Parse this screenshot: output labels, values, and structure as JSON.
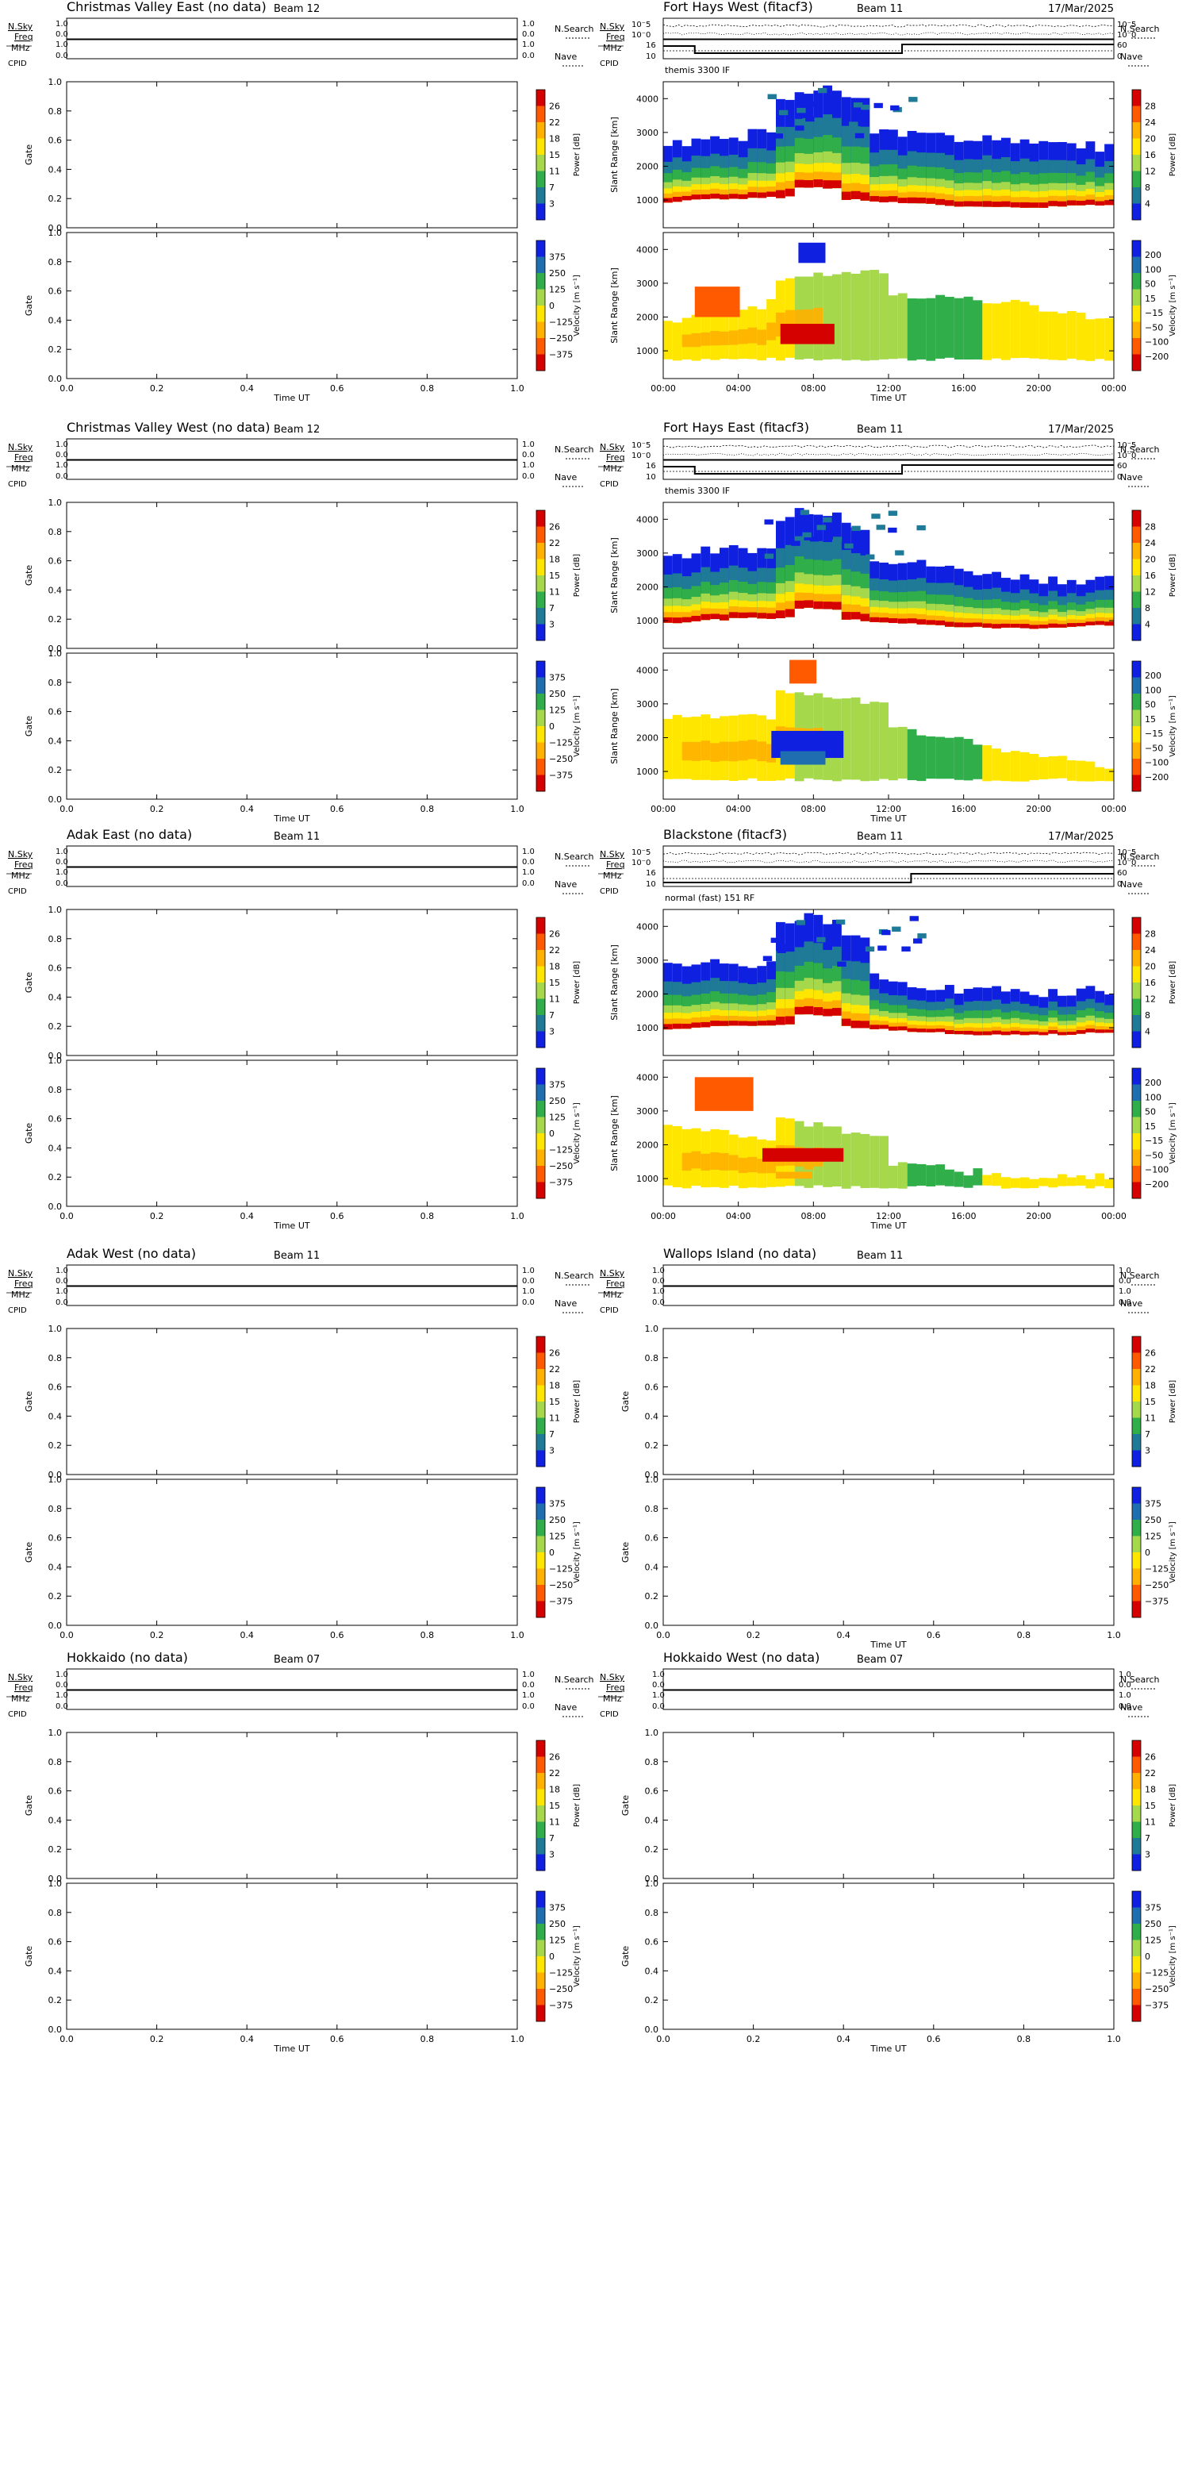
{
  "labels": {
    "nsky": "N.Sky",
    "freq": "Freq",
    "mhz": "MHz",
    "cpid": "CPID",
    "nsearch": "N.Search",
    "nave": "Nave",
    "gate": "Gate",
    "slant_range": "Slant Range [km]",
    "time_ut": "Time UT",
    "power_unit": "Power [dB]",
    "velocity_unit": "Velocity [m s⁻¹]"
  },
  "scales": {
    "empty_power": [
      "26",
      "22",
      "18",
      "15",
      "11",
      "7",
      "3"
    ],
    "empty_velocity": [
      "375",
      "250",
      "125",
      "0",
      "−125",
      "−250",
      "−375"
    ],
    "data_power": [
      "28",
      "24",
      "20",
      "16",
      "12",
      "8",
      "4"
    ],
    "data_velocity": [
      "200",
      "100",
      "50",
      "15",
      "−15",
      "−50",
      "−100",
      "−200"
    ],
    "power_colors": [
      "#d50000",
      "#ff5a00",
      "#ffb000",
      "#ffe600",
      "#a6d84c",
      "#2fae4a",
      "#1f7a98",
      "#1020e0"
    ],
    "velocity_colors": [
      "#1020e0",
      "#1f6fb0",
      "#2fae4a",
      "#a6d84c",
      "#ffe600",
      "#ffb000",
      "#ff5a00",
      "#d50000"
    ],
    "norm_ticks": [
      "0.0",
      "0.2",
      "0.4",
      "0.6",
      "0.8",
      "1.0"
    ],
    "slant_ticks": [
      "1000",
      "2000",
      "3000",
      "4000"
    ],
    "time_ticks": [
      "00:00",
      "04:00",
      "08:00",
      "12:00",
      "16:00",
      "20:00",
      "00:00"
    ],
    "nsky_ticks": [
      "10⁻5",
      "10⁻0"
    ],
    "freq_ticks": [
      "16",
      "10"
    ],
    "nave_ticks": [
      "60",
      "0"
    ]
  },
  "panels": [
    {
      "title": "Christmas Valley East (no data)",
      "beam": "Beam 12",
      "has_data": false,
      "show_xlabel": true
    },
    {
      "title": "Fort Hays West (fitacf3)",
      "beam": "Beam 11",
      "date": "17/Mar/2025",
      "cpid": "themis 3300 IF",
      "has_data": true,
      "variant": 0,
      "show_xlabel": true
    },
    {
      "title": "Christmas Valley West (no data)",
      "beam": "Beam 12",
      "has_data": false,
      "show_xlabel": true
    },
    {
      "title": "Fort Hays East (fitacf3)",
      "beam": "Beam 11",
      "date": "17/Mar/2025",
      "cpid": "themis 3300 IF",
      "has_data": true,
      "variant": 1,
      "show_xlabel": true
    },
    {
      "title": "Adak East (no data)",
      "beam": "Beam 11",
      "has_data": false,
      "show_xlabel": true
    },
    {
      "title": "Blackstone (fitacf3)",
      "beam": "Beam 11",
      "date": "17/Mar/2025",
      "cpid": "normal (fast) 151 RF",
      "has_data": true,
      "variant": 2,
      "show_xlabel": true
    },
    {
      "title": "Adak West (no data)",
      "beam": "Beam 11",
      "has_data": false,
      "show_xlabel": false
    },
    {
      "title": "Wallops Island (no data)",
      "beam": "Beam 11",
      "has_data": false,
      "show_xlabel": true
    },
    {
      "title": "Hokkaido (no data)",
      "beam": "Beam 07",
      "has_data": false,
      "show_xlabel": true
    },
    {
      "title": "Hokkaido West (no data)",
      "beam": "Beam 07",
      "has_data": false,
      "show_xlabel": true
    }
  ],
  "chart_data": [
    {
      "type": "heatmap",
      "title": "Christmas Valley East (no data)",
      "subtitle": "Beam 12",
      "ylabel": "Gate",
      "xlabel": "Time UT",
      "xlim": [
        0,
        1
      ],
      "ylim": [
        0,
        1
      ],
      "power_range_db": [
        3,
        26
      ],
      "velocity_range": [
        -375,
        375
      ],
      "values": []
    },
    {
      "type": "heatmap",
      "title": "Fort Hays West (fitacf3)",
      "subtitle": "Beam 11",
      "date": "17/Mar/2025",
      "cpid": "themis 3300 IF",
      "ylabel": "Slant Range [km]",
      "xlabel": "Time UT",
      "x_ticks": [
        "00:00",
        "04:00",
        "08:00",
        "12:00",
        "16:00",
        "20:00",
        "00:00"
      ],
      "y_ticks": [
        1000,
        2000,
        3000,
        4000
      ],
      "power_range_db": [
        4,
        28
      ],
      "velocity_range": [
        -200,
        200
      ]
    },
    {
      "type": "heatmap",
      "title": "Christmas Valley West (no data)",
      "subtitle": "Beam 12",
      "ylabel": "Gate",
      "xlabel": "Time UT",
      "xlim": [
        0,
        1
      ],
      "ylim": [
        0,
        1
      ],
      "power_range_db": [
        3,
        26
      ],
      "velocity_range": [
        -375,
        375
      ],
      "values": []
    },
    {
      "type": "heatmap",
      "title": "Fort Hays East (fitacf3)",
      "subtitle": "Beam 11",
      "date": "17/Mar/2025",
      "cpid": "themis 3300 IF",
      "ylabel": "Slant Range [km]",
      "xlabel": "Time UT",
      "x_ticks": [
        "00:00",
        "04:00",
        "08:00",
        "12:00",
        "16:00",
        "20:00",
        "00:00"
      ],
      "y_ticks": [
        1000,
        2000,
        3000,
        4000
      ],
      "power_range_db": [
        4,
        28
      ],
      "velocity_range": [
        -200,
        200
      ]
    },
    {
      "type": "heatmap",
      "title": "Adak East (no data)",
      "subtitle": "Beam 11",
      "ylabel": "Gate",
      "xlabel": "Time UT",
      "xlim": [
        0,
        1
      ],
      "ylim": [
        0,
        1
      ],
      "power_range_db": [
        3,
        26
      ],
      "velocity_range": [
        -375,
        375
      ],
      "values": []
    },
    {
      "type": "heatmap",
      "title": "Blackstone (fitacf3)",
      "subtitle": "Beam 11",
      "date": "17/Mar/2025",
      "cpid": "normal (fast) 151 RF",
      "ylabel": "Slant Range [km]",
      "xlabel": "Time UT",
      "x_ticks": [
        "00:00",
        "04:00",
        "08:00",
        "12:00",
        "16:00",
        "20:00",
        "00:00"
      ],
      "y_ticks": [
        1000,
        2000,
        3000,
        4000
      ],
      "power_range_db": [
        4,
        28
      ],
      "velocity_range": [
        -200,
        200
      ]
    },
    {
      "type": "heatmap",
      "title": "Adak West (no data)",
      "subtitle": "Beam 11",
      "ylabel": "Gate",
      "xlabel": "",
      "xlim": [
        0,
        1
      ],
      "ylim": [
        0,
        1
      ],
      "power_range_db": [
        3,
        26
      ],
      "velocity_range": [
        -375,
        375
      ],
      "values": []
    },
    {
      "type": "heatmap",
      "title": "Wallops Island (no data)",
      "subtitle": "Beam 11",
      "ylabel": "Gate",
      "xlabel": "Time UT",
      "xlim": [
        0,
        1
      ],
      "ylim": [
        0,
        1
      ],
      "power_range_db": [
        3,
        26
      ],
      "velocity_range": [
        -375,
        375
      ],
      "values": []
    },
    {
      "type": "heatmap",
      "title": "Hokkaido (no data)",
      "subtitle": "Beam 07",
      "ylabel": "Gate",
      "xlabel": "Time UT",
      "xlim": [
        0,
        1
      ],
      "ylim": [
        0,
        1
      ],
      "power_range_db": [
        3,
        26
      ],
      "velocity_range": [
        -375,
        375
      ],
      "values": []
    },
    {
      "type": "heatmap",
      "title": "Hokkaido West (no data)",
      "subtitle": "Beam 07",
      "ylabel": "Gate",
      "xlabel": "Time UT",
      "xlim": [
        0,
        1
      ],
      "ylim": [
        0,
        1
      ],
      "power_range_db": [
        3,
        26
      ],
      "velocity_range": [
        -375,
        375
      ],
      "values": []
    }
  ]
}
